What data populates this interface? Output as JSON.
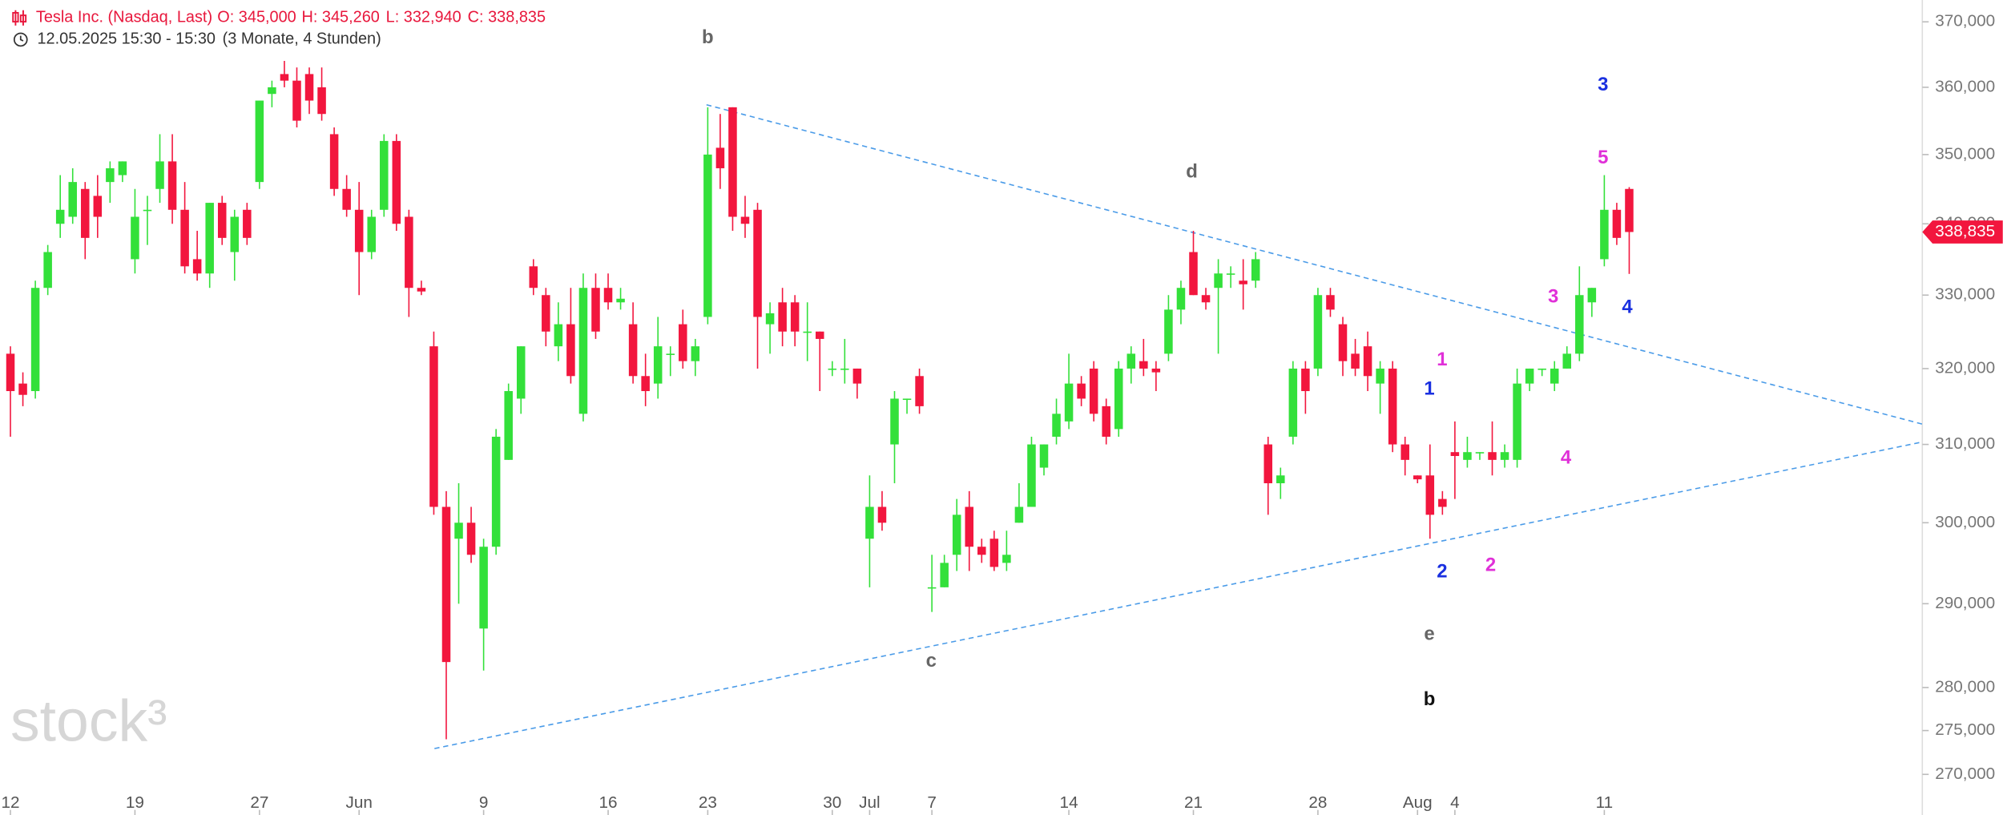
{
  "chart_data": {
    "type": "candlestick",
    "header": {
      "symbol": "Tesla Inc. (Nasdaq, Last)",
      "ohlc": [
        "O: 345,000",
        "H: 345,260",
        "L: 332,940",
        "C: 338,835"
      ],
      "period": "12.05.2025 15:30 - 15:30",
      "range": "(3 Monate, 4 Stunden)"
    },
    "watermark": "stock³",
    "categories": [
      "12",
      null,
      null,
      null,
      null,
      null,
      null,
      null,
      null,
      null,
      "19",
      null,
      null,
      null,
      null,
      null,
      null,
      null,
      null,
      null,
      "27",
      null,
      null,
      null,
      null,
      null,
      null,
      null,
      "Jun",
      null,
      null,
      null,
      null,
      null,
      null,
      null,
      null,
      null,
      "9",
      null,
      null,
      null,
      null,
      null,
      null,
      null,
      null,
      null,
      "16",
      null,
      null,
      null,
      null,
      null,
      null,
      null,
      "23",
      null,
      null,
      null,
      null,
      null,
      null,
      null,
      null,
      null,
      "30",
      null,
      null,
      "Jul",
      null,
      null,
      null,
      null,
      "7",
      null,
      null,
      null,
      null,
      null,
      null,
      null,
      null,
      null,
      null,
      "14",
      null,
      null,
      null,
      null,
      null,
      null,
      null,
      null,
      null,
      "21",
      null,
      null,
      null,
      null,
      null,
      null,
      null,
      null,
      null,
      "28",
      null,
      null,
      null,
      null,
      null,
      null,
      null,
      "Aug",
      null,
      null,
      "4",
      null,
      null,
      null,
      null,
      null,
      null,
      null,
      null,
      null,
      null,
      null,
      "11",
      null,
      null
    ],
    "open": [
      322,
      318,
      317,
      331,
      340,
      341,
      345,
      344,
      346,
      347,
      335,
      342,
      345,
      349,
      342,
      335,
      333,
      343,
      336,
      342,
      346,
      359,
      362,
      361,
      362,
      360,
      353,
      345,
      342,
      336,
      342,
      352,
      341,
      331,
      323,
      302,
      298,
      300,
      287,
      297,
      308,
      316,
      334,
      330,
      323,
      326,
      314,
      331,
      331,
      329,
      326,
      319,
      318,
      322,
      326,
      321,
      327,
      351,
      357,
      341,
      342,
      326,
      329,
      329,
      325,
      325,
      320,
      320,
      320,
      298,
      302,
      310,
      316,
      319,
      292,
      292,
      296,
      302,
      297,
      298,
      295,
      300,
      302,
      307,
      311,
      313,
      318,
      320,
      315,
      312,
      320,
      321,
      320,
      322,
      328,
      336,
      330,
      331,
      333,
      332,
      332,
      310,
      305,
      311,
      320,
      320,
      330,
      326,
      322,
      323,
      318,
      320,
      310,
      306,
      306,
      303,
      309,
      308,
      309,
      309,
      308,
      308,
      318,
      320,
      318,
      320,
      322,
      329,
      335,
      342,
      345
    ],
    "high": [
      323,
      319.5,
      332,
      337,
      347,
      348,
      346,
      347,
      349,
      349,
      345,
      344,
      353,
      353,
      346,
      339,
      343,
      344,
      342,
      343,
      358,
      361,
      364,
      363,
      363,
      363,
      354,
      347,
      346,
      342,
      353,
      353,
      342,
      332,
      325,
      304,
      305,
      302,
      298,
      312,
      318,
      323,
      335,
      331,
      329,
      331,
      333,
      333,
      333,
      331,
      329,
      322,
      327,
      323,
      328,
      324,
      357,
      356,
      357,
      344,
      343,
      329,
      331,
      330,
      329,
      325,
      321,
      324,
      320,
      306,
      304,
      317,
      316,
      320,
      296,
      296,
      303,
      304,
      298,
      299,
      299,
      305,
      311,
      310,
      316,
      322,
      319,
      321,
      316,
      321,
      323,
      324,
      321,
      330,
      332,
      339,
      331,
      335,
      334,
      335,
      336,
      311,
      307,
      321,
      321,
      331,
      331,
      327,
      324,
      325,
      321,
      321,
      311,
      306,
      310,
      304,
      313,
      311,
      309,
      313,
      310,
      320,
      320,
      320,
      321,
      323,
      334,
      331,
      347,
      343,
      345.26
    ],
    "low": [
      311,
      315,
      316,
      330,
      338,
      340,
      335,
      338,
      343,
      346,
      333,
      337,
      343,
      340,
      333,
      332,
      331,
      337,
      332,
      337,
      345,
      357,
      360,
      354,
      356,
      355,
      344,
      341,
      330,
      335,
      341,
      339,
      327,
      330,
      301,
      274,
      290,
      295,
      282,
      296,
      308,
      314,
      330,
      323,
      321,
      318,
      313,
      324,
      328,
      328,
      318,
      315,
      316,
      319,
      320,
      319,
      326,
      345,
      339,
      338,
      320,
      322,
      323,
      323,
      321,
      317,
      319,
      318,
      316,
      292,
      299,
      305,
      314,
      314,
      289,
      292,
      294,
      294,
      295,
      294,
      294,
      300,
      302,
      306,
      310,
      312,
      315,
      313,
      310,
      311,
      318,
      319,
      317,
      321,
      326,
      330,
      328,
      322,
      331,
      328,
      331,
      301,
      303,
      310,
      314,
      319,
      327,
      319,
      319,
      317,
      314,
      309,
      306,
      305,
      298,
      301,
      303,
      307,
      308,
      306,
      307,
      307,
      317,
      319,
      317,
      320,
      321,
      327,
      334,
      337,
      332.94
    ],
    "close": [
      317,
      316.5,
      331,
      336,
      342,
      346,
      338,
      341,
      348,
      349,
      341,
      342,
      349,
      342,
      334,
      333,
      343,
      338,
      341,
      338,
      358,
      360,
      361,
      355,
      358,
      356,
      345,
      342,
      336,
      341,
      352,
      340,
      331,
      330.5,
      302,
      283,
      300,
      296,
      297,
      311,
      317,
      323,
      331,
      325,
      326,
      319,
      331,
      325,
      329,
      329.5,
      319,
      317,
      323,
      322,
      321,
      323,
      350,
      348,
      341,
      340,
      327,
      327.5,
      325,
      325,
      325,
      324,
      320,
      320,
      318,
      302,
      300,
      316,
      316,
      315,
      292,
      295,
      301,
      297,
      296,
      294.5,
      296,
      302,
      310,
      310,
      314,
      318,
      316,
      314,
      311,
      320,
      322,
      320,
      319.5,
      328,
      331,
      330,
      329,
      333,
      333,
      331.5,
      335,
      305,
      306,
      320,
      317,
      330,
      328,
      321,
      320,
      319,
      320,
      310,
      308,
      305.5,
      301,
      302,
      308.5,
      309,
      309,
      308,
      309,
      318,
      320,
      320,
      320,
      322,
      330,
      331,
      342,
      338,
      338.835
    ],
    "up_color": "#33e03a",
    "down_color": "#f2163e",
    "log": true,
    "ylim": [
      268.3,
      373.4
    ],
    "yticks": [
      {
        "value": 270,
        "label": "270,000"
      },
      {
        "value": 275,
        "label": "275,000"
      },
      {
        "value": 280,
        "label": "280,000"
      },
      {
        "value": 290,
        "label": "290,000"
      },
      {
        "value": 300,
        "label": "300,000"
      },
      {
        "value": 310,
        "label": "310,000"
      },
      {
        "value": 320,
        "label": "320,000"
      },
      {
        "value": 330,
        "label": "330,000"
      },
      {
        "value": 340,
        "label": "340,000"
      },
      {
        "value": 350,
        "label": "350,000"
      },
      {
        "value": 360,
        "label": "360,000"
      },
      {
        "value": 370,
        "label": "370,000"
      }
    ],
    "last": {
      "value": 338.835,
      "label": "338,835"
    },
    "annotations": [
      {
        "text": "b",
        "color": "#666666"
      },
      {
        "text": "d",
        "color": "#666666"
      },
      {
        "text": "c",
        "color": "#666666"
      },
      {
        "text": "e",
        "color": "#666666"
      },
      {
        "text": "b",
        "color": "#111111"
      },
      {
        "text": "1",
        "color": "#e030d8"
      },
      {
        "text": "1",
        "color": "#1a30e0"
      },
      {
        "text": "2",
        "color": "#1a30e0"
      },
      {
        "text": "2",
        "color": "#e030d8"
      },
      {
        "text": "3",
        "color": "#e030d8"
      },
      {
        "text": "4",
        "color": "#e030d8"
      },
      {
        "text": "3",
        "color": "#1a30e0"
      },
      {
        "text": "5",
        "color": "#e030d8"
      },
      {
        "text": "4",
        "color": "#1a30e0"
      }
    ]
  }
}
